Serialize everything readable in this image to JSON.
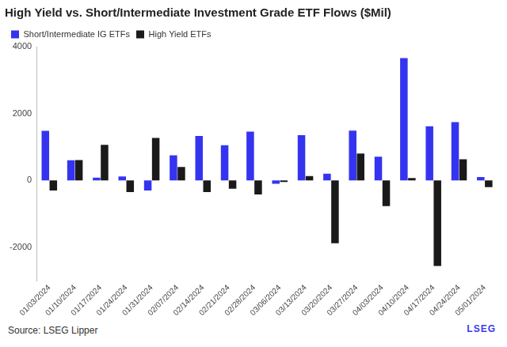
{
  "chart_data": {
    "type": "bar",
    "title": "High Yield vs. Short/Intermediate Investment Grade ETF Flows ($Mil)",
    "categories": [
      "01/03/2024",
      "01/10/2024",
      "01/17/2024",
      "01/24/2024",
      "01/31/2024",
      "02/07/2024",
      "02/14/2024",
      "02/21/2024",
      "02/28/2024",
      "03/06/2024",
      "03/13/2024",
      "03/20/2024",
      "03/27/2024",
      "04/03/2024",
      "04/10/2024",
      "04/17/2024",
      "04/24/2024",
      "05/01/2024"
    ],
    "series": [
      {
        "name": "Short/Intermediate IG ETFs",
        "color": "#3434f0",
        "values": [
          1480,
          600,
          80,
          120,
          -300,
          750,
          1330,
          1050,
          1460,
          -100,
          1350,
          200,
          1490,
          710,
          3660,
          1620,
          1740,
          100
        ]
      },
      {
        "name": "High Yield ETFs",
        "color": "#1a1a1a",
        "values": [
          -300,
          610,
          1060,
          -350,
          1270,
          400,
          -350,
          -250,
          -420,
          -50,
          130,
          -1880,
          800,
          -770,
          70,
          -2560,
          630,
          -200
        ]
      }
    ],
    "ylim": [
      -3000,
      4000
    ],
    "yticks": [
      -2000,
      0,
      2000,
      4000
    ],
    "grid": false,
    "legend": "top-left",
    "source": "Source: LSEG Lipper",
    "logo": "LSEG"
  }
}
